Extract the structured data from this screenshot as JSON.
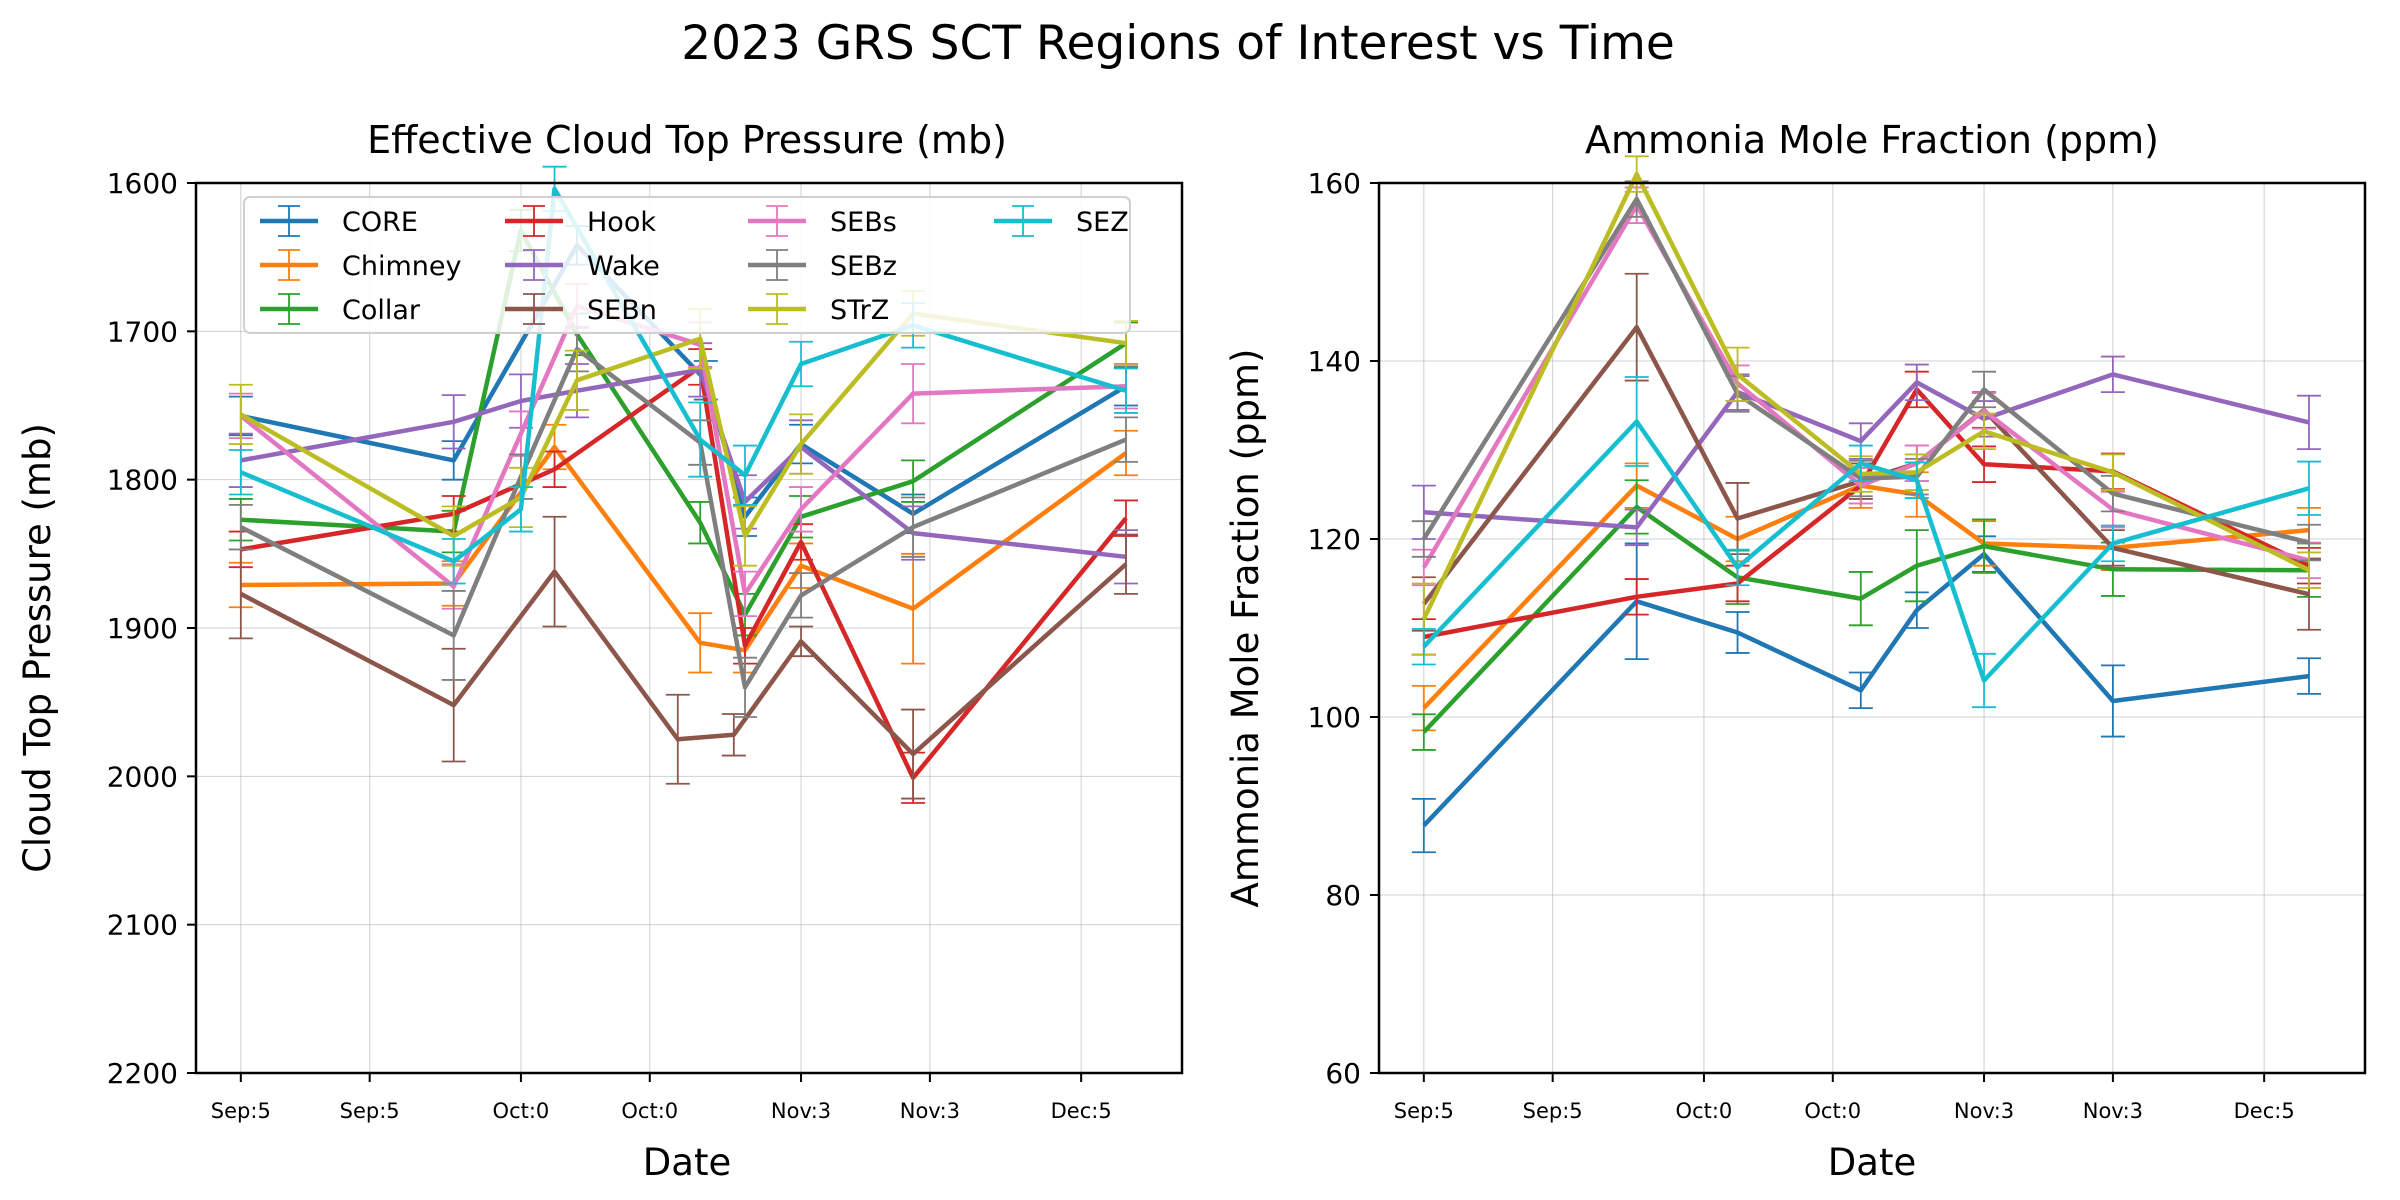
{
  "figure": {
    "title": "2023 GRS SCT Regions of Interest vs Time"
  },
  "legend": {
    "placement": "top-left inside left plot, 4 columns",
    "entries": [
      "CORE",
      "Chimney",
      "Collar",
      "Hook",
      "Wake",
      "SEBn",
      "SEBs",
      "SEBz",
      "STrZ",
      "SEZ"
    ]
  },
  "series_colors": {
    "CORE": "#1f77b4",
    "Chimney": "#ff7f0e",
    "Collar": "#2ca02c",
    "Hook": "#d62728",
    "Wake": "#9467bd",
    "SEBn": "#8c564b",
    "SEBs": "#e377c2",
    "SEBz": "#7f7f7f",
    "STrZ": "#bcbd22",
    "SEZ": "#17becf"
  },
  "chart_data": [
    {
      "type": "line",
      "title": "Effective Cloud Top Pressure (mb)",
      "xlabel": "Date",
      "ylabel": "Cloud Top Pressure (mb)",
      "ylim": [
        1600,
        2200
      ],
      "y_inverted": true,
      "yticks": [
        1600,
        1700,
        1800,
        1900,
        2000,
        2100,
        2200
      ],
      "xlim": [
        -0.8,
        16.8
      ],
      "xticks": [
        0,
        2.3,
        5,
        7.3,
        10,
        12.3,
        15
      ],
      "xtick_labels": [
        "Sep:5",
        "Sep:5",
        "Oct:0",
        "Oct:0",
        "Nov:3",
        "Nov:3",
        "Dec:5"
      ],
      "grid": true,
      "legend_position": "top-left",
      "series": [
        {
          "name": "CORE",
          "x": [
            0,
            3.8,
            6,
            8.3,
            9,
            10,
            12,
            15.8
          ],
          "y": [
            1757,
            1787,
            1642,
            1733,
            1825,
            1776,
            1823,
            1737
          ],
          "err": [
            13,
            13,
            13,
            13,
            13,
            13,
            13,
            13
          ]
        },
        {
          "name": "Chimney",
          "x": [
            0,
            3.8,
            5.6,
            8.2,
            9,
            10,
            12,
            15.8
          ],
          "y": [
            1871,
            1870,
            1778,
            1910,
            1915,
            1858,
            1887,
            1782
          ],
          "err": [
            15,
            15,
            15,
            20,
            15,
            15,
            37,
            15
          ]
        },
        {
          "name": "Collar",
          "x": [
            0,
            3.8,
            5,
            6,
            8.2,
            9,
            10,
            12,
            15.8
          ],
          "y": [
            1827,
            1835,
            1632,
            1702,
            1829,
            1891,
            1825,
            1801,
            1708
          ],
          "err": [
            14,
            14,
            14,
            14,
            14,
            14,
            14,
            14,
            14
          ]
        },
        {
          "name": "Hook",
          "x": [
            0,
            3.8,
            5.6,
            8.2,
            9,
            10,
            12,
            15.8
          ],
          "y": [
            1847,
            1823,
            1793,
            1724,
            1912,
            1842,
            2001,
            1826
          ],
          "err": [
            12,
            12,
            12,
            12,
            12,
            12,
            17,
            12
          ]
        },
        {
          "name": "Wake",
          "x": [
            0,
            3.8,
            5,
            6,
            8.2,
            9,
            10,
            12,
            15.8
          ],
          "y": [
            1787,
            1761,
            1747,
            1740,
            1726,
            1815,
            1778,
            1836,
            1852
          ],
          "err": [
            18,
            18,
            18,
            18,
            18,
            18,
            18,
            18,
            18
          ]
        },
        {
          "name": "SEBn",
          "x": [
            0,
            3.8,
            5.6,
            7.8,
            8.8,
            10,
            12,
            15.8
          ],
          "y": [
            1877,
            1952,
            1862,
            1975,
            1972,
            1909,
            1985,
            1857
          ],
          "err": [
            30,
            38,
            37,
            30,
            14,
            10,
            30,
            20
          ]
        },
        {
          "name": "SEBs",
          "x": [
            0,
            3.8,
            5,
            6,
            8.2,
            9,
            10,
            12,
            15.8
          ],
          "y": [
            1757,
            1872,
            1769,
            1683,
            1709,
            1877,
            1820,
            1742,
            1737
          ],
          "err": [
            15,
            15,
            15,
            15,
            15,
            15,
            15,
            20,
            15
          ]
        },
        {
          "name": "SEBz",
          "x": [
            0,
            3.8,
            5,
            6,
            8.2,
            9,
            10,
            12,
            15.8
          ],
          "y": [
            1832,
            1905,
            1798,
            1712,
            1775,
            1940,
            1878,
            1832,
            1773
          ],
          "err": [
            15,
            30,
            15,
            15,
            15,
            20,
            15,
            20,
            15
          ]
        },
        {
          "name": "STrZ",
          "x": [
            0,
            3.8,
            5,
            6,
            8.2,
            9,
            10,
            12,
            15.8
          ],
          "y": [
            1756,
            1838,
            1812,
            1733,
            1705,
            1838,
            1776,
            1688,
            1708
          ],
          "err": [
            20,
            20,
            20,
            20,
            20,
            20,
            20,
            15,
            15
          ]
        },
        {
          "name": "SEZ",
          "x": [
            0,
            3.8,
            5,
            5.6,
            8.2,
            9,
            10,
            12,
            15.8
          ],
          "y": [
            1795,
            1855,
            1820,
            1604,
            1773,
            1797,
            1722,
            1696,
            1740
          ],
          "err": [
            15,
            15,
            15,
            15,
            25,
            20,
            15,
            15,
            15
          ]
        }
      ]
    },
    {
      "type": "line",
      "title": "Ammonia Mole Fraction (ppm)",
      "xlabel": "Date",
      "ylabel": "Ammonia Mole Fraction (ppm)",
      "ylim": [
        60,
        160
      ],
      "yticks": [
        60,
        80,
        100,
        120,
        140,
        160
      ],
      "xlim": [
        -0.8,
        16.8
      ],
      "xticks": [
        0,
        2.3,
        5,
        7.3,
        10,
        12.3,
        15
      ],
      "xtick_labels": [
        "Sep:5",
        "Sep:5",
        "Oct:0",
        "Oct:0",
        "Nov:3",
        "Nov:3",
        "Dec:5"
      ],
      "grid": true,
      "series": [
        {
          "name": "CORE",
          "x": [
            0,
            3.8,
            5.6,
            7.8,
            8.8,
            10,
            12.3,
            15.8
          ],
          "y": [
            87.8,
            113,
            109.5,
            103,
            112,
            118.3,
            101.8,
            104.6
          ],
          "err": [
            3,
            6.5,
            2.3,
            2,
            2,
            2,
            4,
            2
          ]
        },
        {
          "name": "Chimney",
          "x": [
            0,
            3.8,
            5.6,
            7.8,
            8.8,
            10,
            12.3,
            15.8
          ],
          "y": [
            101,
            126,
            120,
            126,
            125,
            119.5,
            119,
            121
          ],
          "err": [
            2.5,
            2.5,
            2.5,
            2.5,
            2.5,
            2.5,
            2.5,
            2.5
          ]
        },
        {
          "name": "Collar",
          "x": [
            0,
            3.8,
            5.6,
            7.8,
            8.8,
            10,
            12.3,
            15.8
          ],
          "y": [
            98.3,
            123.6,
            115.7,
            113.3,
            117,
            119.2,
            116.6,
            116.5
          ],
          "err": [
            2,
            3,
            3,
            3,
            4,
            3,
            3,
            3
          ]
        },
        {
          "name": "Hook",
          "x": [
            0,
            3.8,
            5.6,
            7.8,
            8.8,
            10,
            12.3,
            15.8
          ],
          "y": [
            109,
            113.5,
            115,
            126,
            136.8,
            128.4,
            127.6,
            117
          ],
          "err": [
            2,
            2,
            2,
            2,
            2,
            2,
            2,
            2
          ]
        },
        {
          "name": "Wake",
          "x": [
            0,
            3.8,
            5.6,
            7.8,
            8.8,
            10,
            12.3,
            15.8
          ],
          "y": [
            123,
            121.3,
            136.5,
            131,
            137.6,
            133.5,
            138.5,
            133.1
          ],
          "err": [
            3,
            2,
            2,
            2,
            2,
            2,
            2,
            3
          ]
        },
        {
          "name": "SEBn",
          "x": [
            0,
            3.8,
            5.6,
            7.8,
            8.8,
            10,
            12.3,
            15.8
          ],
          "y": [
            112.7,
            143.8,
            122.3,
            126.5,
            128.5,
            134.5,
            119,
            113.8
          ],
          "err": [
            3,
            6,
            4,
            2,
            2,
            2,
            2,
            4
          ]
        },
        {
          "name": "SEBs",
          "x": [
            0,
            3.8,
            5.6,
            7.8,
            8.8,
            10,
            12.3,
            15.8
          ],
          "y": [
            116.8,
            157.5,
            137.5,
            126,
            128.5,
            134.4,
            123.3,
            117.6
          ],
          "err": [
            2,
            2,
            2,
            2,
            2,
            2,
            2,
            2
          ]
        },
        {
          "name": "SEBz",
          "x": [
            0,
            3.8,
            5.6,
            7.8,
            8.8,
            10,
            12.3,
            15.8
          ],
          "y": [
            120,
            158.2,
            136.3,
            126.8,
            127,
            136.8,
            125.1,
            119.6
          ],
          "err": [
            2,
            2,
            2,
            2,
            2,
            2,
            2,
            2
          ]
        },
        {
          "name": "STrZ",
          "x": [
            0,
            3.8,
            5.6,
            7.8,
            8.8,
            10,
            12.3,
            15.8
          ],
          "y": [
            111,
            161,
            138.5,
            127.3,
            127.5,
            132.1,
            127.5,
            116.5
          ],
          "err": [
            4,
            2,
            3,
            2,
            2,
            2,
            2,
            2
          ]
        },
        {
          "name": "SEZ",
          "x": [
            0,
            3.8,
            5.6,
            7.8,
            8.8,
            10,
            12.3,
            15.8
          ],
          "y": [
            107.9,
            133.2,
            116.8,
            128.5,
            126.6,
            104.1,
            119.5,
            125.7
          ],
          "err": [
            2,
            5,
            2,
            2,
            2,
            3,
            2,
            3
          ]
        }
      ]
    }
  ]
}
